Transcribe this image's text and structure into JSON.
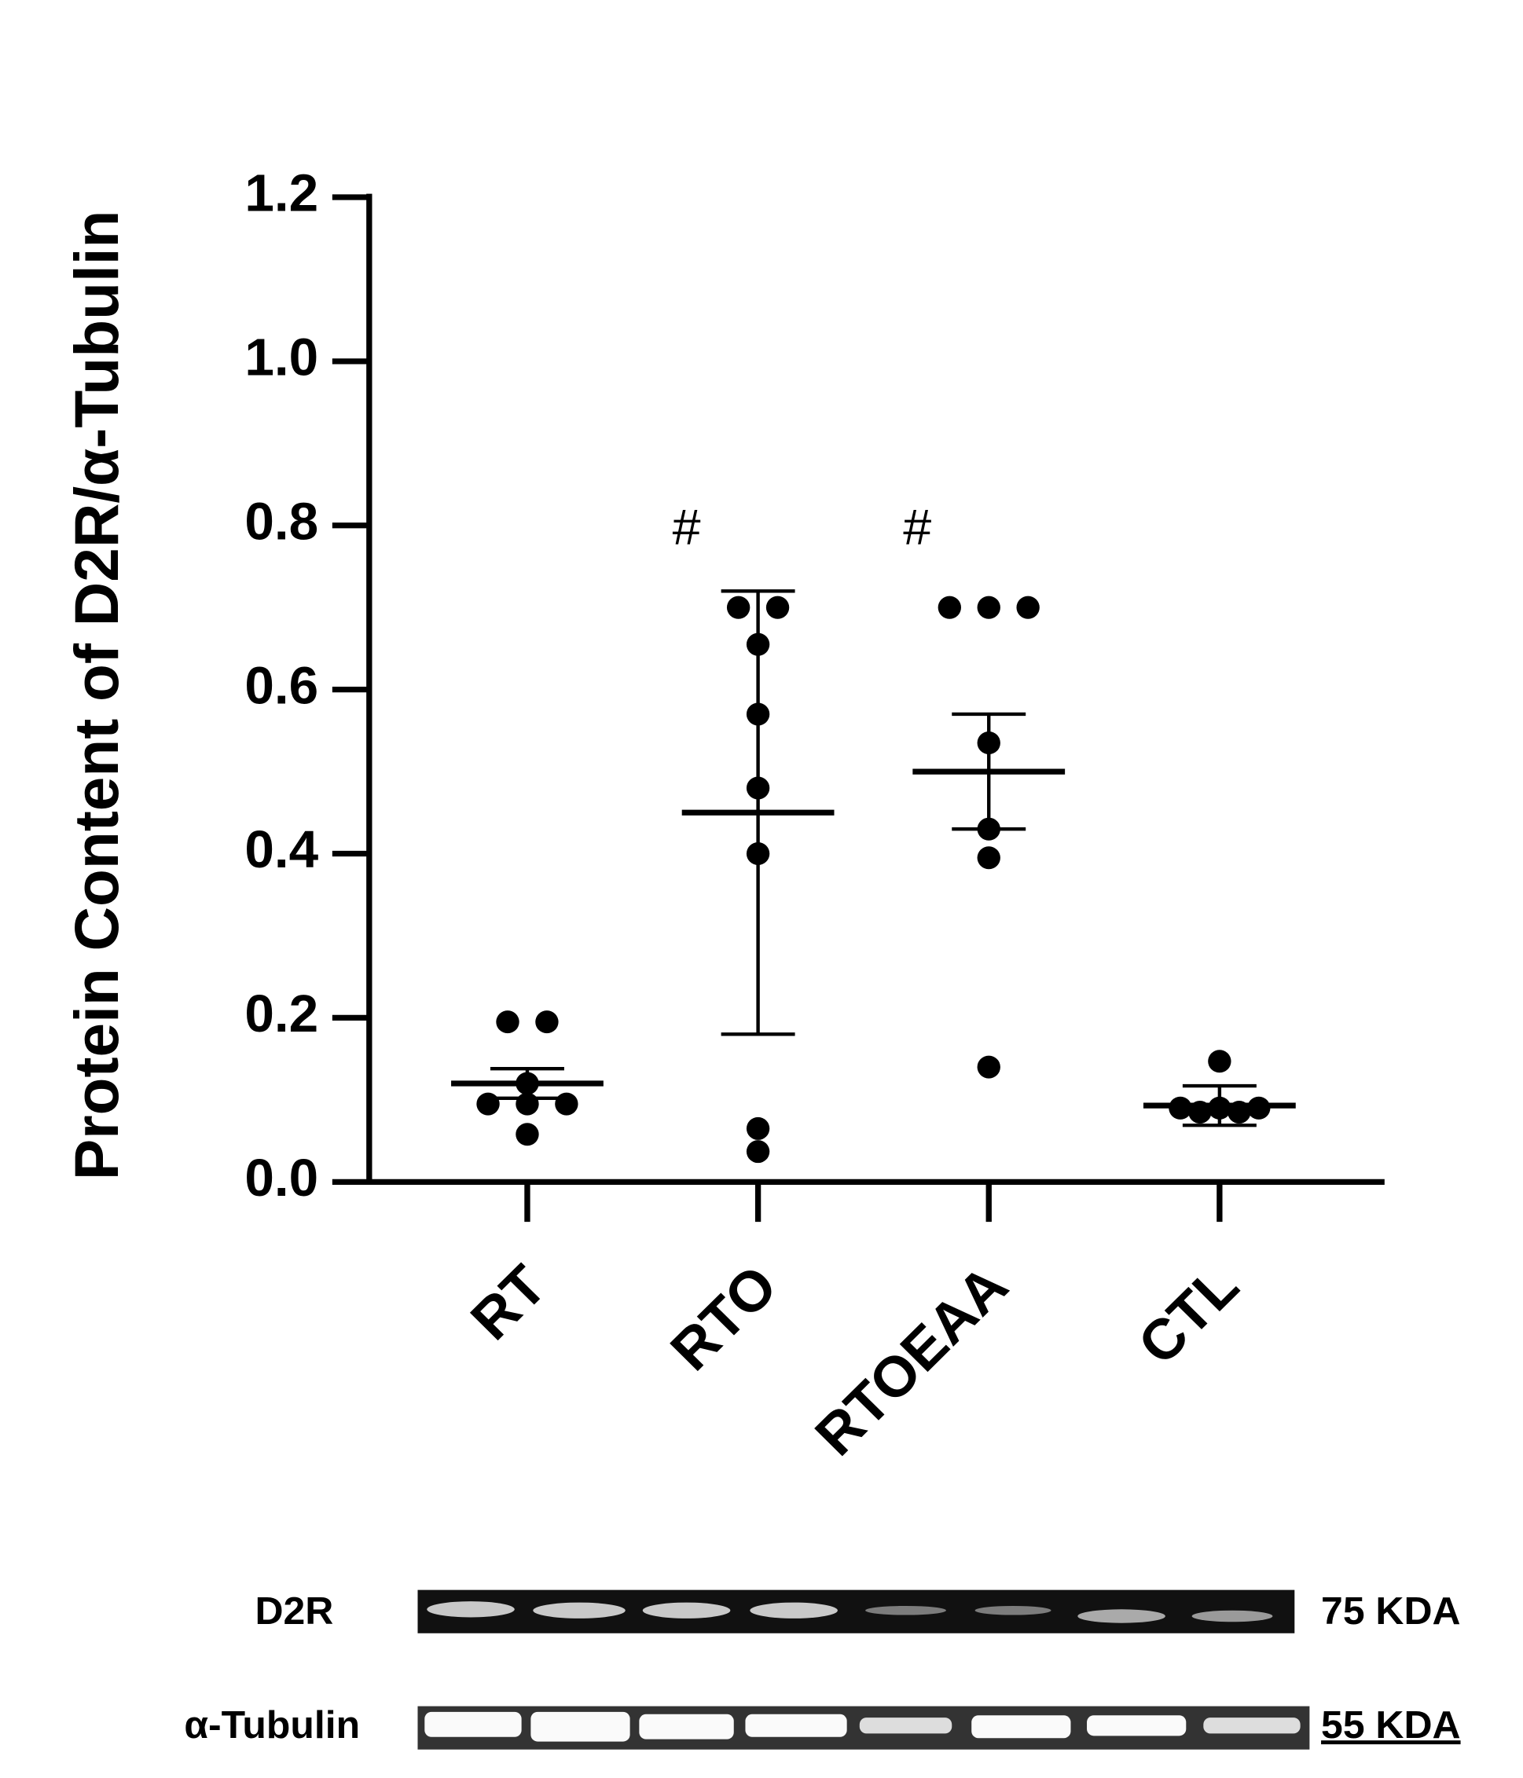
{
  "chart_data": {
    "type": "dot",
    "y_label": "Protein Content of D2R/α-Tubulin",
    "categories": [
      "RT",
      "RTO",
      "RTOEAA",
      "CTL"
    ],
    "points": [
      [
        0.195,
        0.195,
        0.12,
        0.095,
        0.095,
        0.095,
        0.058
      ],
      [
        0.7,
        0.7,
        0.655,
        0.57,
        0.48,
        0.4,
        0.065,
        0.037
      ],
      [
        0.7,
        0.7,
        0.7,
        0.535,
        0.43,
        0.395,
        0.14
      ],
      [
        0.147,
        0.09,
        0.09,
        0.09,
        0.085,
        0.085
      ]
    ],
    "means": [
      0.12,
      0.45,
      0.5,
      0.093
    ],
    "errors": [
      0.018,
      0.27,
      0.07,
      0.024
    ],
    "annotations": [
      null,
      "#",
      "#",
      null
    ],
    "color": "#000000",
    "ylim": [
      0,
      1.2
    ],
    "yticks": [
      {
        "value": 0,
        "label": "0.0"
      },
      0.2,
      0.4,
      0.6,
      0.8,
      {
        "value": 1,
        "label": "1.0"
      },
      1.2
    ]
  },
  "blot": {
    "rows": [
      {
        "label": "D2R",
        "size": "75 KDA"
      },
      {
        "label": "α-Tubulin",
        "size": "55 KDA"
      }
    ]
  }
}
